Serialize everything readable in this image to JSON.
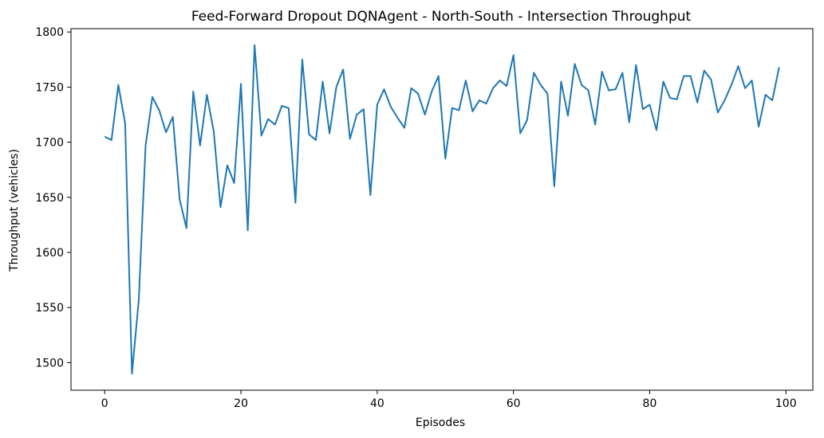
{
  "chart_data": {
    "type": "line",
    "title": "Feed-Forward Dropout DQNAgent - North-South - Intersection Throughput",
    "xlabel": "Episodes",
    "ylabel": "Throughput (vehicles)",
    "xlim": [
      -4.95,
      103.95
    ],
    "ylim": [
      1475,
      1803
    ],
    "xticks": [
      0,
      20,
      40,
      60,
      80,
      100
    ],
    "yticks": [
      1500,
      1550,
      1600,
      1650,
      1700,
      1750,
      1800
    ],
    "grid": false,
    "line_color": "#1f77b4",
    "series": [
      {
        "x": [
          0,
          1,
          2,
          3,
          4,
          5,
          6,
          7,
          8,
          9,
          10,
          11,
          12,
          13,
          14,
          15,
          16,
          17,
          18,
          19,
          20,
          21,
          22,
          23,
          24,
          25,
          26,
          27,
          28,
          29,
          30,
          31,
          32,
          33,
          34,
          35,
          36,
          37,
          38,
          39,
          40,
          41,
          42,
          43,
          44,
          45,
          46,
          47,
          48,
          49,
          50,
          51,
          52,
          53,
          54,
          55,
          56,
          57,
          58,
          59,
          60,
          61,
          62,
          63,
          64,
          65,
          66,
          67,
          68,
          69,
          70,
          71,
          72,
          73,
          74,
          75,
          76,
          77,
          78,
          79,
          80,
          81,
          82,
          83,
          84,
          85,
          86,
          87,
          88,
          89,
          90,
          91,
          92,
          93,
          94,
          95,
          96,
          97,
          98,
          99
        ],
        "values": [
          1705,
          1702,
          1752,
          1717,
          1490,
          1557,
          1697,
          1741,
          1729,
          1709,
          1723,
          1648,
          1622,
          1746,
          1697,
          1743,
          1710,
          1641,
          1679,
          1663,
          1753,
          1620,
          1788,
          1706,
          1721,
          1716,
          1733,
          1731,
          1645,
          1775,
          1707,
          1702,
          1755,
          1708,
          1750,
          1766,
          1703,
          1725,
          1730,
          1652,
          1734,
          1748,
          1732,
          1722,
          1713,
          1749,
          1744,
          1725,
          1746,
          1760,
          1685,
          1731,
          1729,
          1756,
          1728,
          1738,
          1735,
          1749,
          1756,
          1751,
          1779,
          1708,
          1720,
          1763,
          1752,
          1744,
          1660,
          1755,
          1724,
          1771,
          1752,
          1747,
          1716,
          1764,
          1747,
          1748,
          1763,
          1718,
          1770,
          1730,
          1734,
          1711,
          1755,
          1740,
          1739,
          1760,
          1760,
          1736,
          1765,
          1757,
          1727,
          1738,
          1752,
          1769,
          1749,
          1756,
          1714,
          1743,
          1738,
          1768
        ]
      }
    ]
  }
}
